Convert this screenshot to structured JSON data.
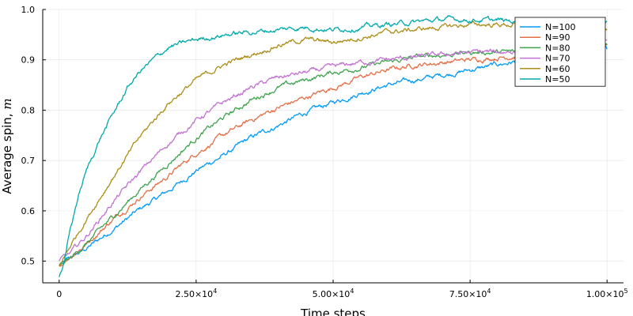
{
  "chart_data": {
    "type": "line",
    "title": "",
    "xlabel": "Time steps",
    "ylabel": "Average spin,",
    "ylabel_symbol": "m",
    "xlim": [
      -3000,
      103000
    ],
    "ylim": [
      0.457,
      1.0
    ],
    "x_ticks": [
      {
        "value": 0,
        "mant": "0",
        "exp": ""
      },
      {
        "value": 25000,
        "mant": "2.50×10",
        "exp": "4"
      },
      {
        "value": 50000,
        "mant": "5.00×10",
        "exp": "4"
      },
      {
        "value": 75000,
        "mant": "7.50×10",
        "exp": "4"
      },
      {
        "value": 100000,
        "mant": "1.00×10",
        "exp": "5"
      }
    ],
    "y_ticks": [
      {
        "value": 0.5,
        "label": "0.5"
      },
      {
        "value": 0.6,
        "label": "0.6"
      },
      {
        "value": 0.7,
        "label": "0.7"
      },
      {
        "value": 0.8,
        "label": "0.8"
      },
      {
        "value": 0.9,
        "label": "0.9"
      },
      {
        "value": 1.0,
        "label": "1.0"
      }
    ],
    "grid": true,
    "legend_position": "top-right",
    "series": [
      {
        "name": "N=100",
        "color": "#009AFA",
        "x": [
          0,
          2000,
          5000,
          10000,
          15000,
          20000,
          25000,
          30000,
          35000,
          40000,
          45000,
          50000,
          55000,
          60000,
          65000,
          70000,
          75000,
          80000,
          85000,
          90000,
          95000,
          100000
        ],
        "y": [
          0.49,
          0.505,
          0.525,
          0.565,
          0.605,
          0.64,
          0.68,
          0.71,
          0.745,
          0.77,
          0.795,
          0.815,
          0.835,
          0.85,
          0.86,
          0.87,
          0.88,
          0.89,
          0.9,
          0.91,
          0.915,
          0.92
        ]
      },
      {
        "name": "N=90",
        "color": "#E36F47",
        "x": [
          0,
          2000,
          5000,
          10000,
          15000,
          20000,
          25000,
          30000,
          35000,
          40000,
          45000,
          50000,
          55000,
          60000,
          65000,
          70000,
          75000,
          80000,
          85000,
          90000,
          95000,
          100000
        ],
        "y": [
          0.49,
          0.51,
          0.535,
          0.585,
          0.63,
          0.67,
          0.715,
          0.75,
          0.78,
          0.805,
          0.825,
          0.845,
          0.865,
          0.88,
          0.89,
          0.895,
          0.9,
          0.905,
          0.91,
          0.915,
          0.92,
          0.925
        ]
      },
      {
        "name": "N=80",
        "color": "#3EA44E",
        "x": [
          0,
          2000,
          5000,
          10000,
          15000,
          20000,
          25000,
          30000,
          35000,
          40000,
          45000,
          50000,
          55000,
          60000,
          65000,
          70000,
          75000,
          80000,
          85000,
          90000,
          95000,
          100000
        ],
        "y": [
          0.49,
          0.505,
          0.535,
          0.59,
          0.645,
          0.695,
          0.745,
          0.785,
          0.82,
          0.845,
          0.86,
          0.875,
          0.885,
          0.895,
          0.905,
          0.91,
          0.915,
          0.915,
          0.915,
          0.92,
          0.925,
          0.93
        ]
      },
      {
        "name": "N=70",
        "color": "#C271D2",
        "x": [
          0,
          2000,
          5000,
          10000,
          15000,
          20000,
          25000,
          30000,
          35000,
          40000,
          45000,
          50000,
          55000,
          60000,
          65000,
          70000,
          75000,
          80000,
          85000,
          90000,
          95000,
          100000
        ],
        "y": [
          0.5,
          0.515,
          0.55,
          0.62,
          0.68,
          0.735,
          0.78,
          0.815,
          0.845,
          0.865,
          0.875,
          0.885,
          0.895,
          0.9,
          0.905,
          0.91,
          0.915,
          0.915,
          0.92,
          0.925,
          0.93,
          0.935
        ]
      },
      {
        "name": "N=60",
        "color": "#AC8E18",
        "x": [
          0,
          2000,
          5000,
          10000,
          15000,
          20000,
          25000,
          30000,
          35000,
          40000,
          45000,
          50000,
          55000,
          60000,
          65000,
          70000,
          75000,
          80000,
          85000,
          90000,
          95000,
          100000
        ],
        "y": [
          0.49,
          0.53,
          0.585,
          0.67,
          0.75,
          0.815,
          0.86,
          0.89,
          0.91,
          0.93,
          0.94,
          0.935,
          0.945,
          0.955,
          0.96,
          0.965,
          0.97,
          0.97,
          0.97,
          0.97,
          0.965,
          0.965
        ]
      },
      {
        "name": "N=50",
        "color": "#00A9AD",
        "x": [
          0,
          1000,
          2000,
          3500,
          5000,
          7500,
          10000,
          12500,
          15000,
          20000,
          25000,
          30000,
          35000,
          40000,
          45000,
          50000,
          55000,
          60000,
          65000,
          70000,
          75000,
          80000,
          85000,
          90000,
          95000,
          100000
        ],
        "y": [
          0.47,
          0.5,
          0.56,
          0.63,
          0.68,
          0.745,
          0.795,
          0.845,
          0.88,
          0.925,
          0.94,
          0.95,
          0.955,
          0.96,
          0.965,
          0.96,
          0.965,
          0.97,
          0.975,
          0.98,
          0.98,
          0.978,
          0.975,
          0.97,
          0.965,
          0.975
        ]
      }
    ]
  }
}
